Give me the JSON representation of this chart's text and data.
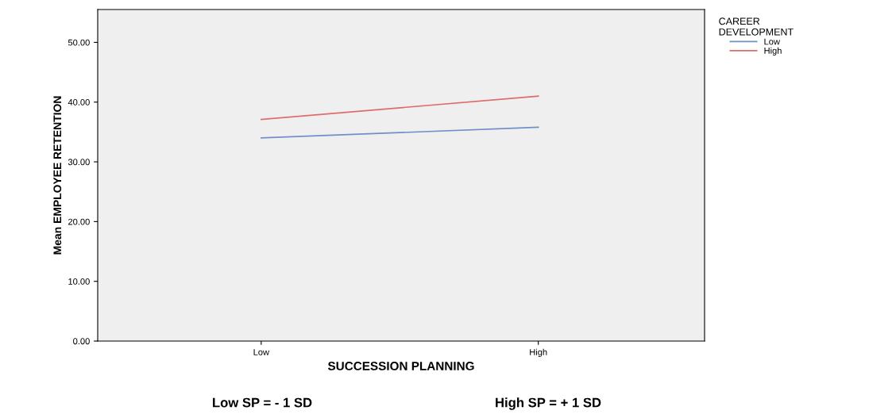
{
  "chart_data": {
    "type": "line",
    "xlabel": "SUCCESSION PLANNING",
    "ylabel": "Mean EMPLOYEE RETENTION",
    "legend_title": "CAREER\nDEVELOPMENT",
    "categories": [
      "Low",
      "High"
    ],
    "series": [
      {
        "name": "Low",
        "color": "#6f8fc8",
        "values": [
          34.0,
          35.8
        ]
      },
      {
        "name": "High",
        "color": "#e06a6a",
        "values": [
          37.1,
          41.0
        ]
      }
    ],
    "ylim": [
      0,
      55.5
    ],
    "yticks": [
      {
        "value": 0,
        "label": "0.00"
      },
      {
        "value": 10,
        "label": "10.00"
      },
      {
        "value": 20,
        "label": "20.00"
      },
      {
        "value": 30,
        "label": "30.00"
      },
      {
        "value": 40,
        "label": "40.00"
      },
      {
        "value": 50,
        "label": "50.00"
      }
    ],
    "grid": false,
    "legend": "top right",
    "marker": "none",
    "line_style": "solid",
    "annotations": [
      "Low SP = - 1 SD",
      "High SP = + 1 SD"
    ]
  }
}
